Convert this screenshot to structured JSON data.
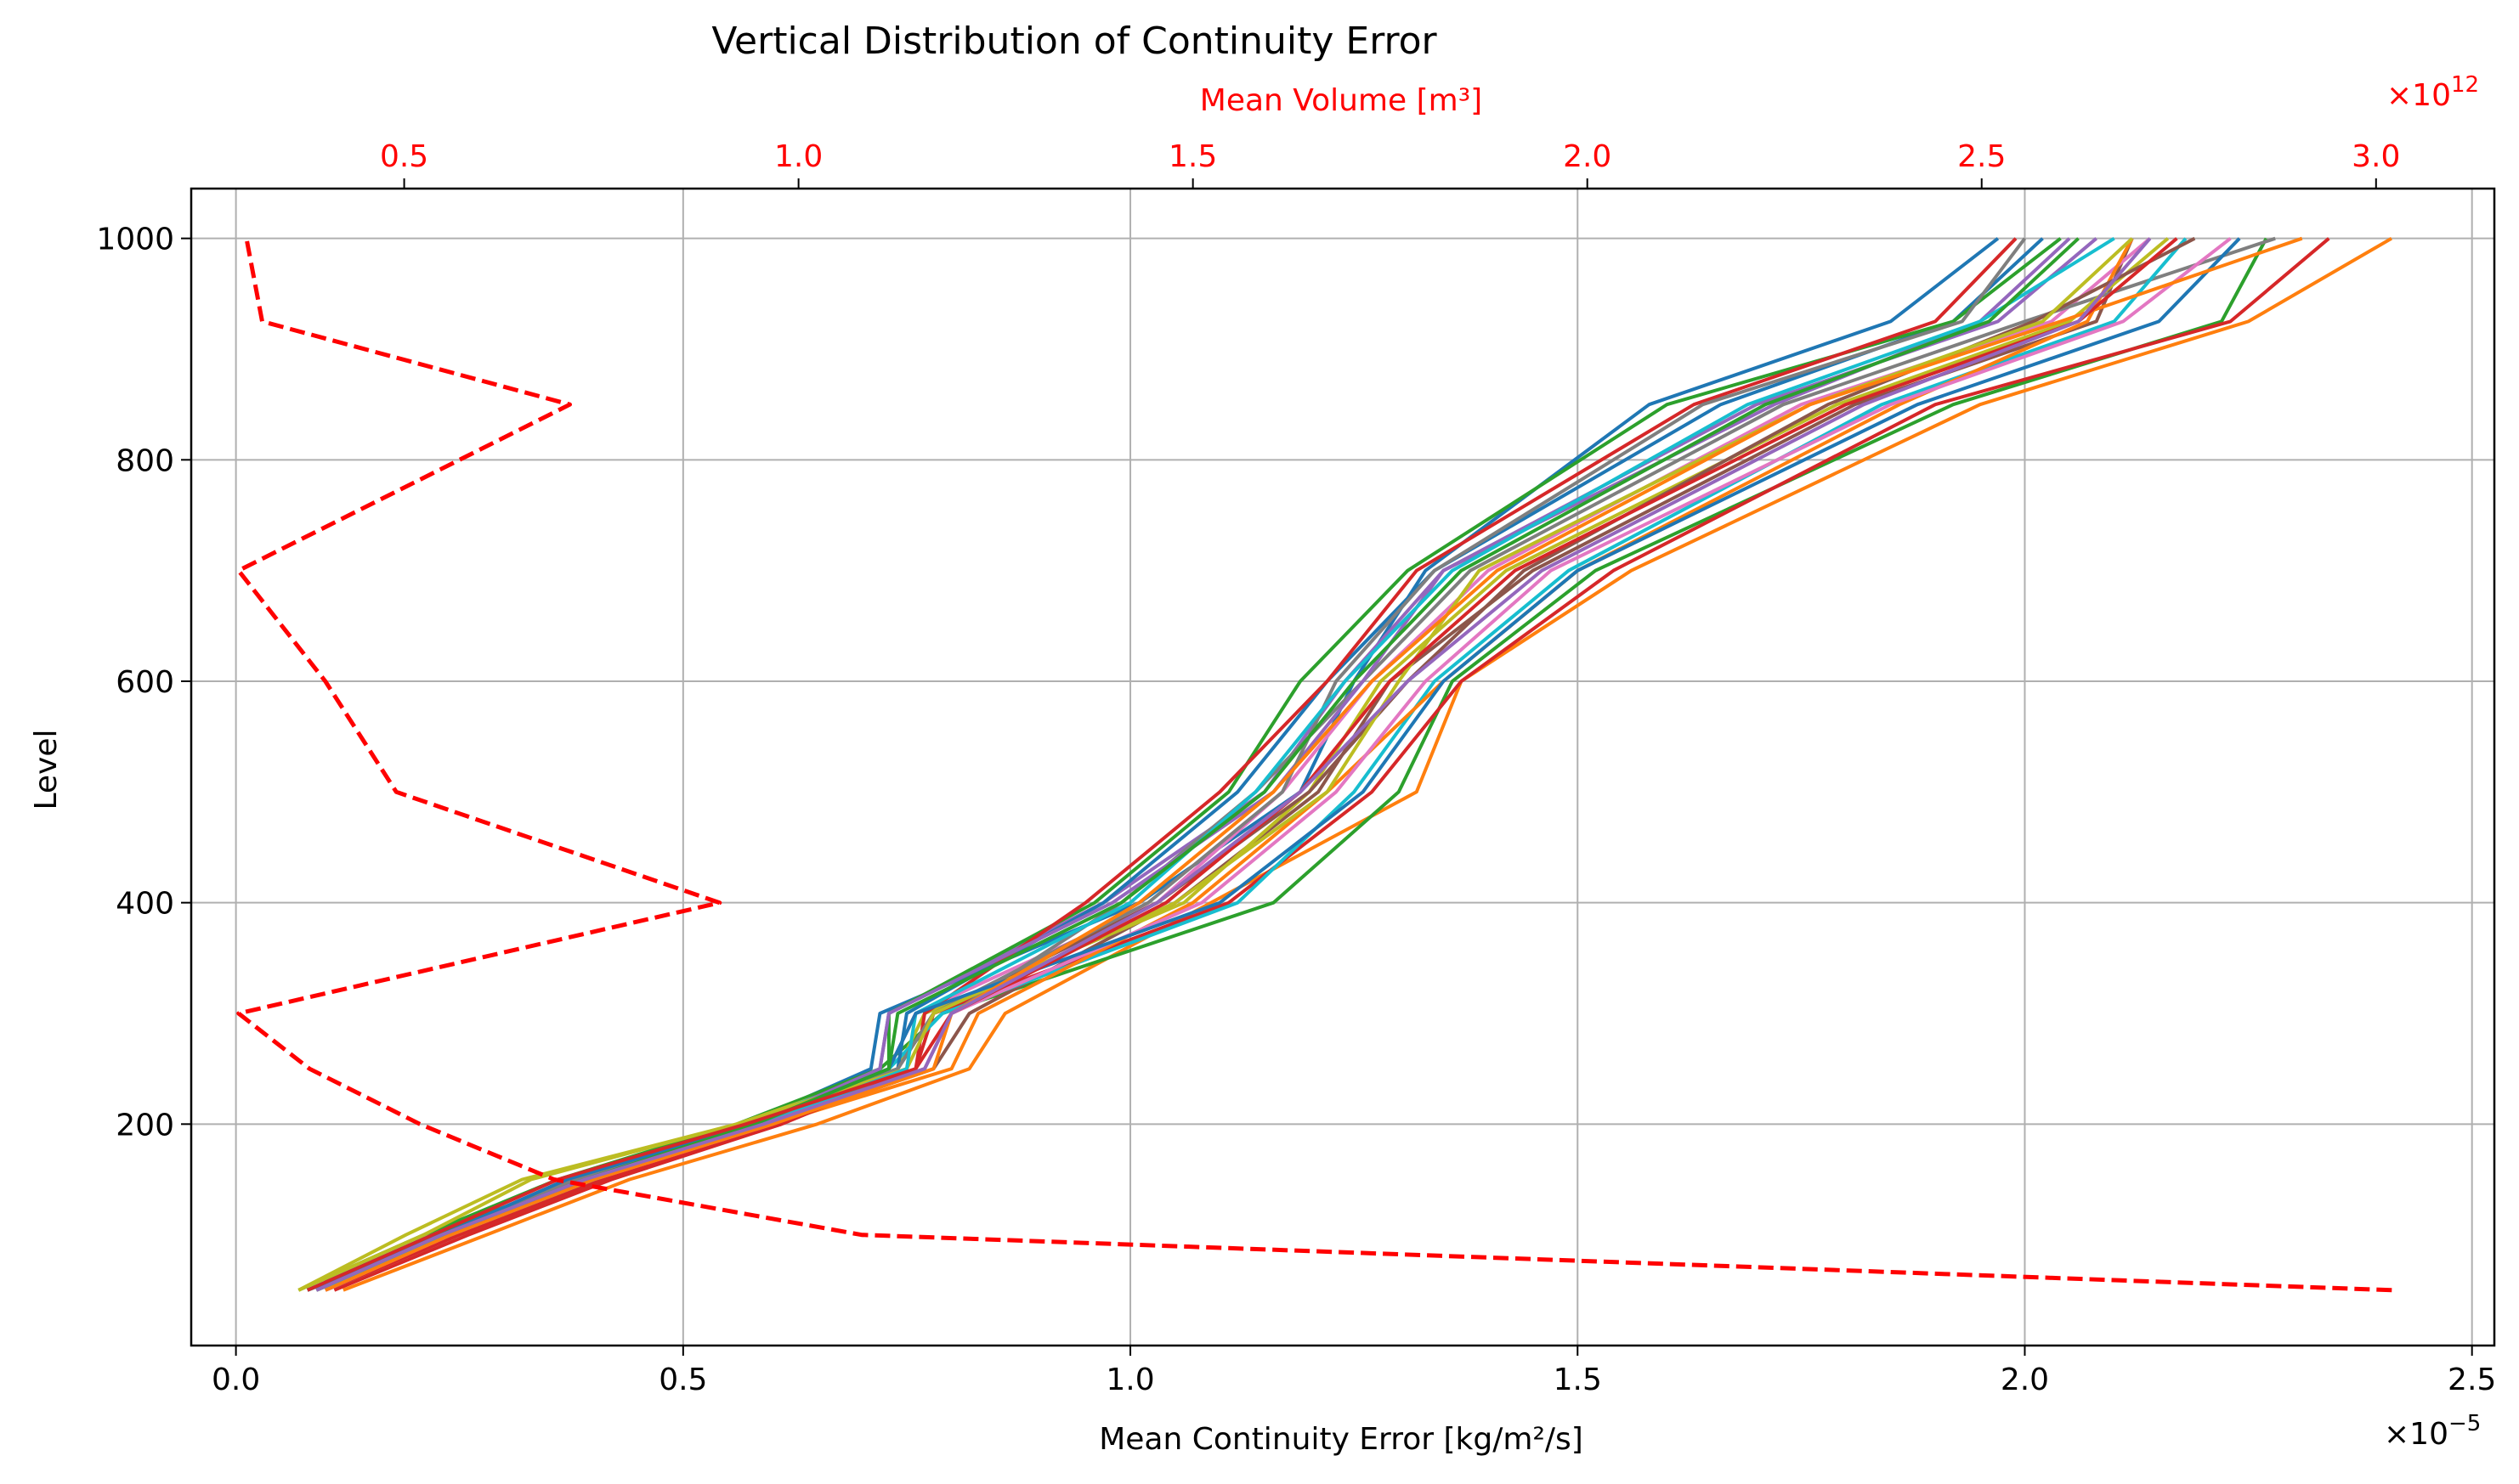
{
  "chart_data": {
    "type": "line",
    "title": "Vertical Distribution of Continuity Error",
    "xlabel": "Mean Continuity Error [kg/m²/s]",
    "ylabel": "Level",
    "xlabel_top": "Mean Volume [m³]",
    "x_exponent_label": "×10",
    "x_exponent_sup": "−5",
    "x_top_exponent_label": "×10",
    "x_top_exponent_sup": "12",
    "xlim": [
      -0.05,
      2.525
    ],
    "ylim": [
      0,
      1045
    ],
    "xlim_top": [
      0.23,
      3.15
    ],
    "x_ticks": [
      "0.0",
      "0.5",
      "1.0",
      "1.5",
      "2.0",
      "2.5"
    ],
    "y_ticks": [
      "200",
      "400",
      "600",
      "800",
      "1000"
    ],
    "x_top_ticks": [
      "0.5",
      "1.0",
      "1.5",
      "2.0",
      "2.5",
      "3.0"
    ],
    "grid": true,
    "accent_color": "#ff0000",
    "levels": [
      50,
      100,
      150,
      200,
      250,
      300,
      400,
      500,
      600,
      700,
      850,
      925,
      1000
    ],
    "volume_series": {
      "axis": "top",
      "style": "dashed",
      "color": "#ff0000",
      "x": [
        3.02,
        1.08,
        0.69,
        0.52,
        0.38,
        0.29,
        0.9,
        0.49,
        0.4,
        0.29,
        0.71,
        0.32,
        0.3
      ],
      "y": [
        50,
        100,
        150,
        200,
        250,
        300,
        400,
        500,
        600,
        700,
        850,
        925,
        1000
      ]
    },
    "series_colors": [
      "#1f77b4",
      "#ff7f0e",
      "#2ca02c",
      "#d62728",
      "#9467bd",
      "#8c564b",
      "#e377c2",
      "#7f7f7f",
      "#bcbd22",
      "#17becf"
    ],
    "series": [
      {
        "values": [
          0.08,
          0.22,
          0.38,
          0.57,
          0.71,
          0.72,
          1.01,
          1.19,
          1.25,
          1.33,
          1.58,
          1.85,
          1.97
        ]
      },
      {
        "values": [
          0.12,
          0.28,
          0.44,
          0.65,
          0.82,
          0.86,
          1.09,
          1.32,
          1.37,
          1.56,
          1.95,
          2.25,
          2.41
        ]
      },
      {
        "values": [
          0.07,
          0.21,
          0.36,
          0.56,
          0.72,
          0.79,
          1.16,
          1.3,
          1.36,
          1.52,
          1.92,
          2.22,
          2.27
        ]
      },
      {
        "values": [
          0.11,
          0.26,
          0.42,
          0.61,
          0.76,
          0.78,
          1.11,
          1.27,
          1.37,
          1.54,
          1.9,
          2.23,
          2.34
        ]
      },
      {
        "values": [
          0.09,
          0.23,
          0.39,
          0.59,
          0.72,
          0.73,
          0.97,
          1.15,
          1.24,
          1.35,
          1.72,
          1.95,
          2.05
        ]
      },
      {
        "values": [
          0.1,
          0.25,
          0.41,
          0.6,
          0.78,
          0.82,
          1.05,
          1.21,
          1.29,
          1.45,
          1.81,
          2.08,
          2.12
        ]
      },
      {
        "values": [
          0.08,
          0.23,
          0.37,
          0.57,
          0.73,
          0.76,
          1.03,
          1.17,
          1.27,
          1.4,
          1.75,
          2.03,
          2.14
        ]
      },
      {
        "values": [
          0.09,
          0.24,
          0.4,
          0.58,
          0.77,
          0.8,
          0.99,
          1.14,
          1.26,
          1.38,
          1.73,
          2.0,
          2.28
        ]
      },
      {
        "values": [
          0.07,
          0.19,
          0.32,
          0.56,
          0.74,
          0.77,
          1.06,
          1.2,
          1.28,
          1.42,
          1.79,
          2.05,
          2.16
        ]
      },
      {
        "values": [
          0.08,
          0.23,
          0.38,
          0.57,
          0.73,
          0.79,
          1.12,
          1.25,
          1.34,
          1.49,
          1.84,
          2.1,
          2.18
        ]
      },
      {
        "values": [
          0.1,
          0.24,
          0.4,
          0.59,
          0.74,
          0.75,
          0.97,
          1.12,
          1.22,
          1.34,
          1.66,
          1.92,
          2.02
        ]
      },
      {
        "values": [
          0.09,
          0.24,
          0.4,
          0.6,
          0.8,
          0.83,
          1.07,
          1.22,
          1.35,
          1.5,
          1.86,
          2.07,
          2.12
        ]
      },
      {
        "values": [
          0.08,
          0.22,
          0.38,
          0.58,
          0.73,
          0.73,
          0.96,
          1.11,
          1.19,
          1.31,
          1.6,
          1.92,
          2.04
        ]
      },
      {
        "values": [
          0.1,
          0.25,
          0.41,
          0.61,
          0.76,
          0.77,
          0.95,
          1.1,
          1.22,
          1.32,
          1.63,
          1.9,
          1.99
        ]
      },
      {
        "values": [
          0.09,
          0.23,
          0.38,
          0.58,
          0.72,
          0.73,
          0.98,
          1.16,
          1.26,
          1.35,
          1.7,
          1.97,
          2.08
        ]
      },
      {
        "values": [
          0.08,
          0.24,
          0.39,
          0.57,
          0.74,
          0.78,
          1.03,
          1.2,
          1.31,
          1.44,
          1.78,
          2.01,
          2.19
        ]
      },
      {
        "values": [
          0.1,
          0.24,
          0.4,
          0.6,
          0.77,
          0.8,
          1.08,
          1.23,
          1.33,
          1.47,
          1.85,
          2.11,
          2.23
        ]
      },
      {
        "values": [
          0.08,
          0.23,
          0.38,
          0.58,
          0.74,
          0.78,
          1.02,
          1.17,
          1.23,
          1.34,
          1.64,
          1.93,
          2.0
        ]
      },
      {
        "values": [
          0.07,
          0.21,
          0.33,
          0.56,
          0.75,
          0.78,
          1.05,
          1.22,
          1.3,
          1.39,
          1.76,
          2.02,
          2.12
        ]
      },
      {
        "values": [
          0.09,
          0.24,
          0.4,
          0.59,
          0.75,
          0.76,
          1.0,
          1.14,
          1.24,
          1.36,
          1.69,
          1.95,
          2.1
        ]
      },
      {
        "values": [
          0.08,
          0.23,
          0.37,
          0.58,
          0.73,
          0.76,
          1.1,
          1.26,
          1.35,
          1.5,
          1.88,
          2.15,
          2.24
        ]
      },
      {
        "values": [
          0.1,
          0.24,
          0.4,
          0.6,
          0.78,
          0.8,
          1.01,
          1.16,
          1.27,
          1.41,
          1.76,
          2.04,
          2.31
        ]
      },
      {
        "values": [
          0.09,
          0.23,
          0.39,
          0.58,
          0.73,
          0.74,
          0.99,
          1.15,
          1.25,
          1.37,
          1.71,
          1.96,
          2.06
        ]
      },
      {
        "values": [
          0.08,
          0.22,
          0.36,
          0.57,
          0.76,
          0.8,
          1.04,
          1.19,
          1.29,
          1.43,
          1.8,
          2.06,
          2.17
        ]
      },
      {
        "values": [
          0.09,
          0.23,
          0.39,
          0.59,
          0.77,
          0.8,
          1.03,
          1.19,
          1.31,
          1.46,
          1.82,
          2.06,
          2.14
        ]
      }
    ]
  }
}
